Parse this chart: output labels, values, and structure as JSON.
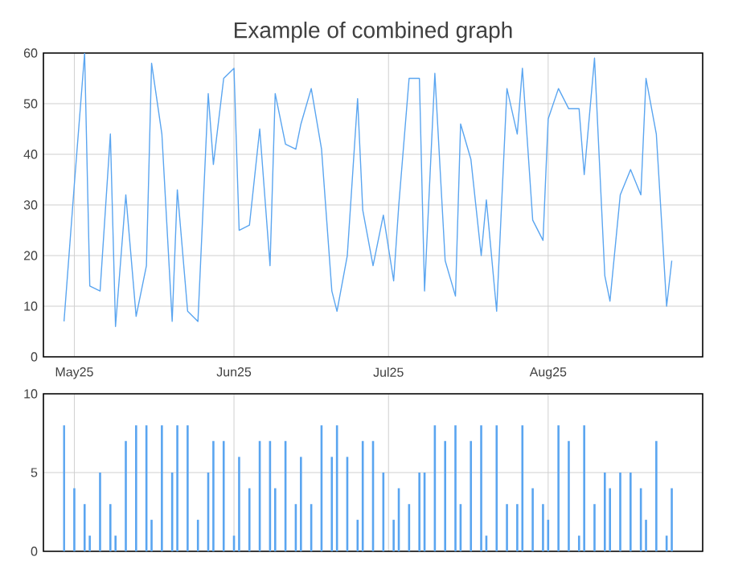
{
  "chart_data": [
    {
      "type": "line",
      "title": "Example of combined graph",
      "color": "#5aa5f0",
      "grid": true,
      "tick_labels": "xy",
      "x": [
        "2025-04-29",
        "2025-05-01",
        "2025-05-03",
        "2025-05-04",
        "2025-05-06",
        "2025-05-08",
        "2025-05-09",
        "2025-05-11",
        "2025-05-13",
        "2025-05-15",
        "2025-05-16",
        "2025-05-18",
        "2025-05-20",
        "2025-05-21",
        "2025-05-23",
        "2025-05-25",
        "2025-05-27",
        "2025-05-28",
        "2025-05-30",
        "2025-06-01",
        "2025-06-02",
        "2025-06-04",
        "2025-06-06",
        "2025-06-08",
        "2025-06-09",
        "2025-06-11",
        "2025-06-13",
        "2025-06-14",
        "2025-06-16",
        "2025-06-18",
        "2025-06-20",
        "2025-06-21",
        "2025-06-23",
        "2025-06-25",
        "2025-06-26",
        "2025-06-28",
        "2025-06-30",
        "2025-07-02",
        "2025-07-03",
        "2025-07-05",
        "2025-07-07",
        "2025-07-08",
        "2025-07-10",
        "2025-07-12",
        "2025-07-14",
        "2025-07-15",
        "2025-07-17",
        "2025-07-19",
        "2025-07-20",
        "2025-07-22",
        "2025-07-24",
        "2025-07-26",
        "2025-07-27",
        "2025-07-29",
        "2025-07-31",
        "2025-08-01",
        "2025-08-03",
        "2025-08-05",
        "2025-08-07",
        "2025-08-08",
        "2025-08-10",
        "2025-08-12",
        "2025-08-13",
        "2025-08-15",
        "2025-08-17",
        "2025-08-19",
        "2025-08-20",
        "2025-08-22",
        "2025-08-24",
        "2025-08-25"
      ],
      "values": [
        7,
        34,
        60,
        14,
        13,
        44,
        6,
        32,
        8,
        18,
        58,
        44,
        7,
        33,
        9,
        7,
        52,
        38,
        55,
        57,
        25,
        26,
        45,
        18,
        52,
        42,
        41,
        46,
        53,
        41,
        13,
        9,
        20,
        51,
        29,
        18,
        28,
        15,
        30,
        55,
        55,
        13,
        56,
        19,
        12,
        46,
        39,
        20,
        31,
        9,
        53,
        44,
        57,
        27,
        23,
        47,
        53,
        49,
        49,
        36,
        59,
        16,
        11,
        32,
        37,
        32,
        55,
        44,
        10,
        19
      ],
      "xlim": [
        "2025-04-25",
        "2025-08-31"
      ],
      "xticks": [
        {
          "value": "2025-05-01",
          "label": "May25"
        },
        {
          "value": "2025-06-01",
          "label": "Jun25"
        },
        {
          "value": "2025-07-01",
          "label": "Jul25"
        },
        {
          "value": "2025-08-01",
          "label": "Aug25"
        }
      ],
      "ylim": [
        0,
        60
      ],
      "yticks": [
        0,
        10,
        20,
        30,
        40,
        50,
        60
      ]
    },
    {
      "type": "bar",
      "color": "#5aa5f0",
      "grid": true,
      "tick_labels": "y",
      "x": [
        "2025-04-29",
        "2025-05-01",
        "2025-05-03",
        "2025-05-04",
        "2025-05-06",
        "2025-05-08",
        "2025-05-09",
        "2025-05-11",
        "2025-05-13",
        "2025-05-15",
        "2025-05-16",
        "2025-05-18",
        "2025-05-20",
        "2025-05-21",
        "2025-05-23",
        "2025-05-25",
        "2025-05-27",
        "2025-05-28",
        "2025-05-30",
        "2025-06-01",
        "2025-06-02",
        "2025-06-04",
        "2025-06-06",
        "2025-06-08",
        "2025-06-09",
        "2025-06-11",
        "2025-06-13",
        "2025-06-14",
        "2025-06-16",
        "2025-06-18",
        "2025-06-20",
        "2025-06-21",
        "2025-06-23",
        "2025-06-25",
        "2025-06-26",
        "2025-06-28",
        "2025-06-30",
        "2025-07-02",
        "2025-07-03",
        "2025-07-05",
        "2025-07-07",
        "2025-07-08",
        "2025-07-10",
        "2025-07-12",
        "2025-07-14",
        "2025-07-15",
        "2025-07-17",
        "2025-07-19",
        "2025-07-20",
        "2025-07-22",
        "2025-07-24",
        "2025-07-26",
        "2025-07-27",
        "2025-07-29",
        "2025-07-31",
        "2025-08-01",
        "2025-08-03",
        "2025-08-05",
        "2025-08-07",
        "2025-08-08",
        "2025-08-10",
        "2025-08-12",
        "2025-08-13",
        "2025-08-15",
        "2025-08-17",
        "2025-08-19",
        "2025-08-20",
        "2025-08-22",
        "2025-08-24",
        "2025-08-25"
      ],
      "values": [
        8,
        4,
        3,
        1,
        5,
        3,
        1,
        7,
        8,
        8,
        2,
        8,
        5,
        8,
        8,
        2,
        5,
        7,
        7,
        1,
        6,
        4,
        7,
        7,
        4,
        7,
        3,
        6,
        3,
        8,
        6,
        8,
        6,
        2,
        7,
        7,
        5,
        2,
        4,
        3,
        5,
        5,
        8,
        7,
        8,
        3,
        7,
        8,
        1,
        8,
        3,
        3,
        8,
        4,
        3,
        2,
        8,
        7,
        1,
        8,
        3,
        5,
        4,
        5,
        5,
        4,
        2,
        7,
        1,
        4
      ],
      "xlim": [
        "2025-04-25",
        "2025-08-31"
      ],
      "xticks": [
        {
          "value": "2025-05-01",
          "label": null
        },
        {
          "value": "2025-06-01",
          "label": null
        },
        {
          "value": "2025-07-01",
          "label": null
        },
        {
          "value": "2025-08-01",
          "label": null
        }
      ],
      "ylim": [
        0,
        10
      ],
      "yticks": [
        0,
        5,
        10
      ]
    }
  ]
}
